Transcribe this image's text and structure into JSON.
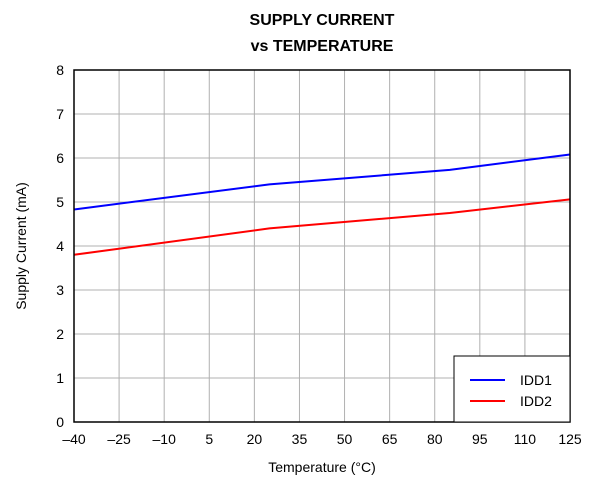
{
  "chart_data": {
    "type": "line",
    "title_lines": [
      "SUPPLY CURRENT",
      "vs TEMPERATURE"
    ],
    "xlabel": "Temperature (°C)",
    "ylabel": "Supply Current (mA)",
    "x_ticks": [
      "–40",
      "–25",
      "–10",
      "5",
      "20",
      "35",
      "50",
      "65",
      "80",
      "95",
      "110",
      "125"
    ],
    "x_tick_values": [
      -40,
      -25,
      -10,
      5,
      20,
      35,
      50,
      65,
      80,
      95,
      110,
      125
    ],
    "y_ticks": [
      "0",
      "1",
      "2",
      "3",
      "4",
      "5",
      "6",
      "7",
      "8"
    ],
    "y_tick_values": [
      0,
      1,
      2,
      3,
      4,
      5,
      6,
      7,
      8
    ],
    "xlim": [
      -40,
      125
    ],
    "ylim": [
      0,
      8
    ],
    "grid": true,
    "legend_position": "bottom-right",
    "series": [
      {
        "name": "IDD1",
        "color": "#0000ff",
        "x": [
          -40,
          25,
          85,
          125
        ],
        "y": [
          4.83,
          5.4,
          5.73,
          6.08
        ]
      },
      {
        "name": "IDD2",
        "color": "#ff0000",
        "x": [
          -40,
          25,
          85,
          125
        ],
        "y": [
          3.8,
          4.4,
          4.75,
          5.06
        ]
      }
    ]
  }
}
